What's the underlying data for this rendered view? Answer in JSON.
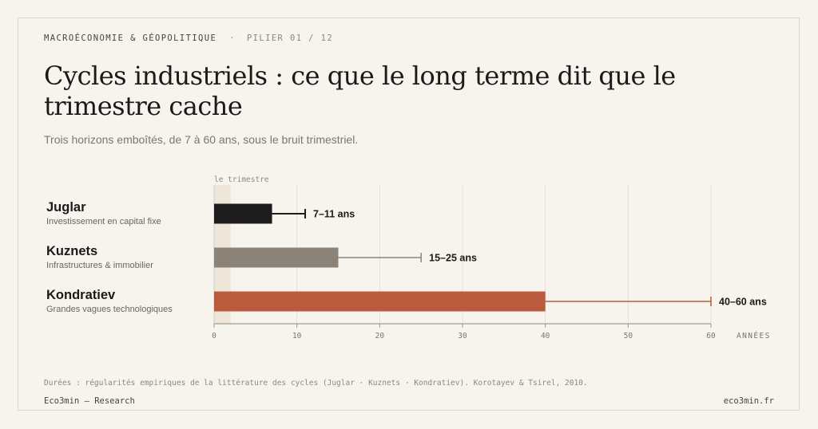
{
  "header": {
    "eyebrow": "MACROÉCONOMIE & GÉOPOLITIQUE",
    "separator": "·",
    "pillar": "PILIER 01 / 12",
    "title": "Cycles industriels : ce que le long terme dit que le trimestre cache",
    "subtitle": "Trois horizons emboîtés, de 7 à 60 ans, sous le bruit trimestriel."
  },
  "chart_data": {
    "type": "bar",
    "orientation": "horizontal",
    "categories": [
      "Juglar",
      "Kuznets",
      "Kondratiev"
    ],
    "descriptions": [
      "Investissement en capital fixe",
      "Infrastructures & immobilier",
      "Grandes vagues technologiques"
    ],
    "values": [
      7,
      15,
      40
    ],
    "range_high": [
      11,
      25,
      60
    ],
    "data_labels": [
      "7–11 ans",
      "15–25 ans",
      "40–60 ans"
    ],
    "colors": [
      "#1c1c1c",
      "#8b8378",
      "#bb5b3d"
    ],
    "xlim": [
      0,
      60
    ],
    "xticks": [
      0,
      10,
      20,
      30,
      40,
      50,
      60
    ],
    "xlabel": "ANNÉES",
    "highlight_band": {
      "label": "le trimestre",
      "from": 0,
      "to": 2
    },
    "grid": true
  },
  "footer": {
    "source": "Durées : régularités empiriques de la littérature des cycles (Juglar · Kuznets · Kondratiev). Korotayev & Tsirel, 2010.",
    "brand_left": "Eco3min — Research",
    "brand_right": "eco3min.fr"
  }
}
